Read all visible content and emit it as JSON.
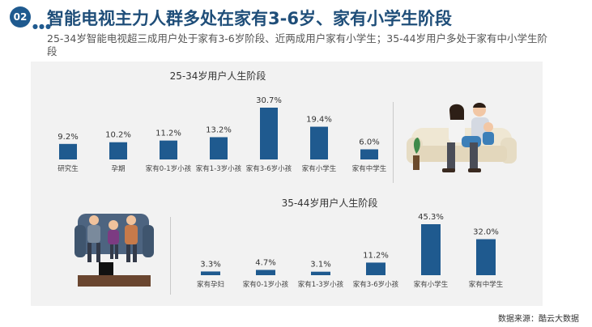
{
  "header": {
    "badge_number": "02",
    "title": "智能电视主力人群多处在家有3-6岁、家有小学生阶段",
    "subtitle": "25-34岁智能电视超三成用户处于家有3-6岁阶段、近两成用户家有小学生；35-44岁用户多处于家有中小学生阶段"
  },
  "colors": {
    "bar": "#1f5a8f",
    "title": "#1f4e79",
    "panel": "#f2f2f2"
  },
  "chart_data": [
    {
      "type": "bar",
      "title": "25-34岁用户人生阶段",
      "categories": [
        "研究生",
        "孕期",
        "家有0-1岁小孩",
        "家有1-3岁小孩",
        "家有3-6岁小孩",
        "家有小学生",
        "家有中学生"
      ],
      "values": [
        9.2,
        10.2,
        11.2,
        13.2,
        30.7,
        19.4,
        6.0
      ],
      "value_labels": [
        "9.2%",
        "10.2%",
        "11.2%",
        "13.2%",
        "30.7%",
        "19.4%",
        "6.0%"
      ]
    },
    {
      "type": "bar",
      "title": "35-44岁用户人生阶段",
      "categories": [
        "家有孕妇",
        "家有0-1岁小孩",
        "家有1-3岁小孩",
        "家有3-6岁小孩",
        "家有小学生",
        "家有中学生"
      ],
      "values": [
        3.3,
        4.7,
        3.1,
        11.2,
        45.3,
        32.0
      ],
      "value_labels": [
        "3.3%",
        "4.7%",
        "3.1%",
        "11.2%",
        "45.3%",
        "32.0%"
      ]
    }
  ],
  "footer": {
    "source": "数据来源：酷云大数据"
  }
}
